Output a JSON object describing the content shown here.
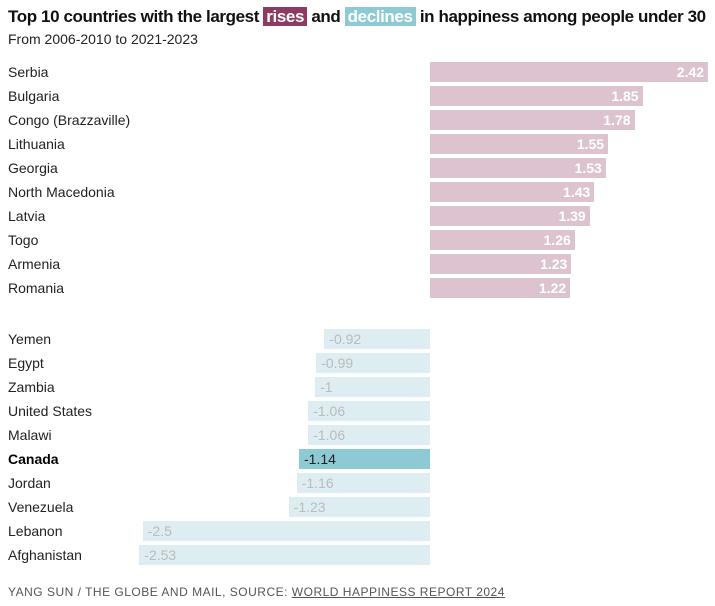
{
  "title": {
    "pre": "Top 10 countries with the largest ",
    "rises": "rises",
    "mid": " and ",
    "declines": "declines",
    "post": " in happiness among people under 30"
  },
  "subtitle": "From 2006-2010 to 2021-2023",
  "footer": {
    "credit": "YANG SUN / THE GLOBE AND MAIL, SOURCE: ",
    "source": "WORLD HAPPINESS REPORT 2024"
  },
  "colors": {
    "rise": "#dcc3cf",
    "rise_accent": "#8e3b61",
    "decline": "#ddedf1",
    "decline_accent": "#8ecad3"
  },
  "chart_data": {
    "type": "bar",
    "orientation": "horizontal",
    "highlight": "Canada",
    "groups": [
      {
        "categories": [
          "Serbia",
          "Bulgaria",
          "Congo (Brazzaville)",
          "Lithuania",
          "Georgia",
          "North Macedonia",
          "Latvia",
          "Togo",
          "Armenia",
          "Romania"
        ],
        "values": [
          2.42,
          1.85,
          1.78,
          1.55,
          1.53,
          1.43,
          1.39,
          1.26,
          1.23,
          1.22
        ]
      },
      {
        "categories": [
          "Yemen",
          "Egypt",
          "Zambia",
          "United States",
          "Malawi",
          "Canada",
          "Jordan",
          "Venezuela",
          "Lebanon",
          "Afghanistan"
        ],
        "values": [
          -0.92,
          -0.99,
          -1,
          -1.06,
          -1.06,
          -1.14,
          -1.16,
          -1.23,
          -2.5,
          -2.53
        ]
      }
    ]
  }
}
